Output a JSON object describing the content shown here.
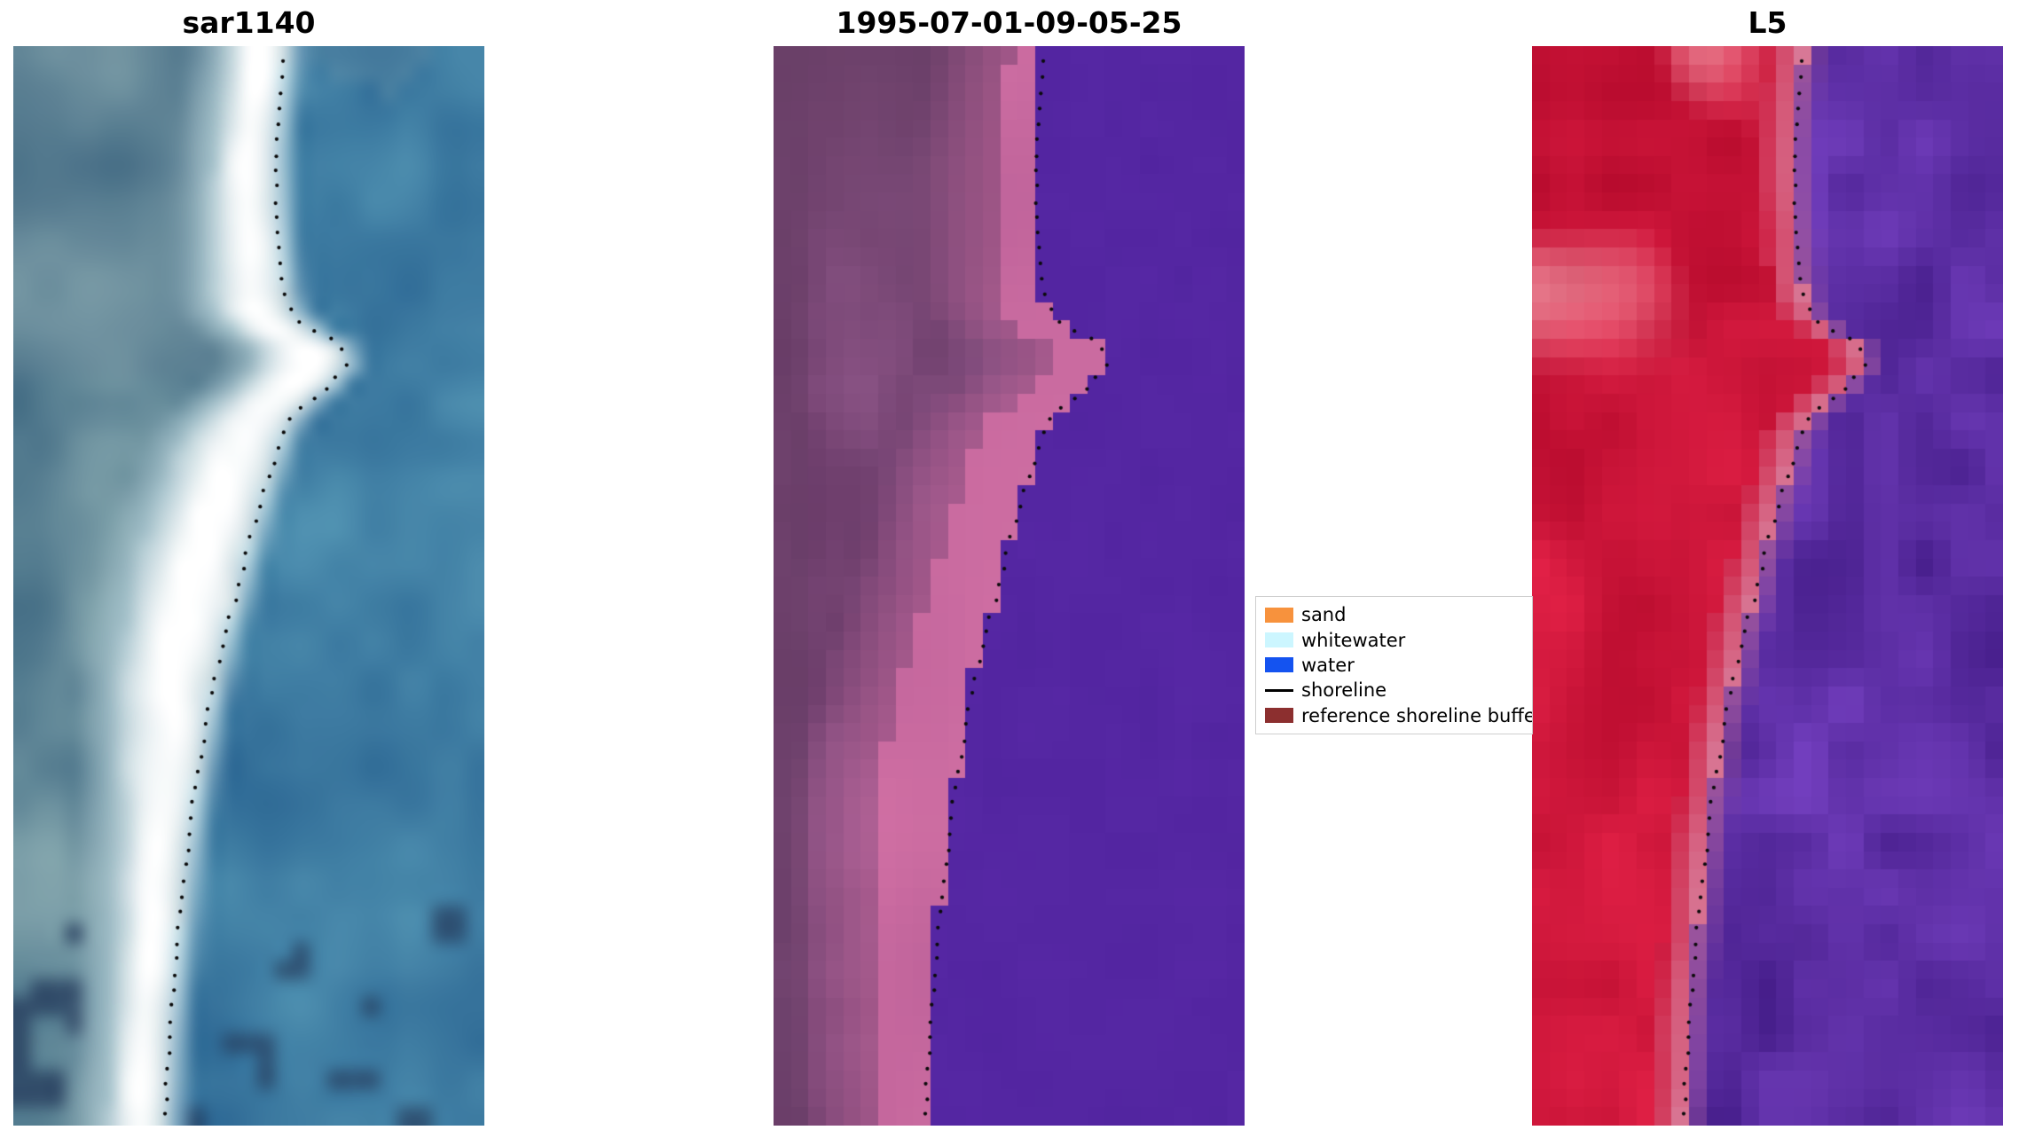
{
  "figure": {
    "background": "#ffffff",
    "shoreline_points": [
      [
        0.0,
        0.58
      ],
      [
        0.05,
        0.565
      ],
      [
        0.1,
        0.556
      ],
      [
        0.15,
        0.56
      ],
      [
        0.2,
        0.568
      ],
      [
        0.24,
        0.578
      ],
      [
        0.26,
        0.62
      ],
      [
        0.275,
        0.69
      ],
      [
        0.295,
        0.705
      ],
      [
        0.315,
        0.668
      ],
      [
        0.34,
        0.596
      ],
      [
        0.365,
        0.566
      ],
      [
        0.41,
        0.533
      ],
      [
        0.46,
        0.5
      ],
      [
        0.51,
        0.472
      ],
      [
        0.555,
        0.443
      ],
      [
        0.625,
        0.41
      ],
      [
        0.7,
        0.383
      ],
      [
        0.77,
        0.363
      ],
      [
        0.84,
        0.347
      ],
      [
        0.91,
        0.333
      ],
      [
        1.0,
        0.322
      ]
    ],
    "panels": [
      {
        "title": "sar1140",
        "render": "sar",
        "palette": {
          "water": "#3e7ca2",
          "band": "#ffffff",
          "band_edge": "#a8c4cd",
          "land": "#628898",
          "dark": "#283e5e"
        }
      },
      {
        "title": "1995-07-01-09-05-25",
        "render": "cls",
        "palette": {
          "water": "#5426a2",
          "beach": "#c6689e",
          "land": "#7e4a7a",
          "land_dark": "#6a4068"
        }
      },
      {
        "title": "L5",
        "render": "l5",
        "palette": {
          "water": "#5c2ea4",
          "shore": "#d87896",
          "land": "#cd163a",
          "cloud": "#eba0aa"
        }
      }
    ]
  },
  "legend": {
    "entries": [
      {
        "label": "sand",
        "type": "patch",
        "color": "#f7923d"
      },
      {
        "label": "whitewater",
        "type": "patch",
        "color": "#ccf6ff"
      },
      {
        "label": "water",
        "type": "patch",
        "color": "#1453f0"
      },
      {
        "label": "shoreline",
        "type": "line",
        "color": "#000000"
      },
      {
        "label": "reference shoreline buffer",
        "type": "patch",
        "color": "#8c2f2f"
      }
    ]
  },
  "chart_data": [
    {
      "type": "heatmap",
      "title": "sar1140",
      "description": "SAR backscatter image in blue-teal tones; bright white band marks the beach/surf zone; black dotted overlay is the mapped shoreline",
      "overlays": [
        "dotted shoreline"
      ]
    },
    {
      "type": "heatmap",
      "title": "1995-07-01-09-05-25",
      "description": "Classified optical image: mauve land, pink sand strip along the coast, uniform purple water, black dotted mapped shoreline",
      "overlays": [
        "dotted shoreline"
      ]
    },
    {
      "type": "heatmap",
      "title": "L5",
      "description": "Landsat 5 false-colour scene: red land with lighter pink cloud patches top-left, pink shore strip, purple-violet water, black dotted mapped shoreline",
      "overlays": [
        "dotted shoreline"
      ]
    }
  ]
}
